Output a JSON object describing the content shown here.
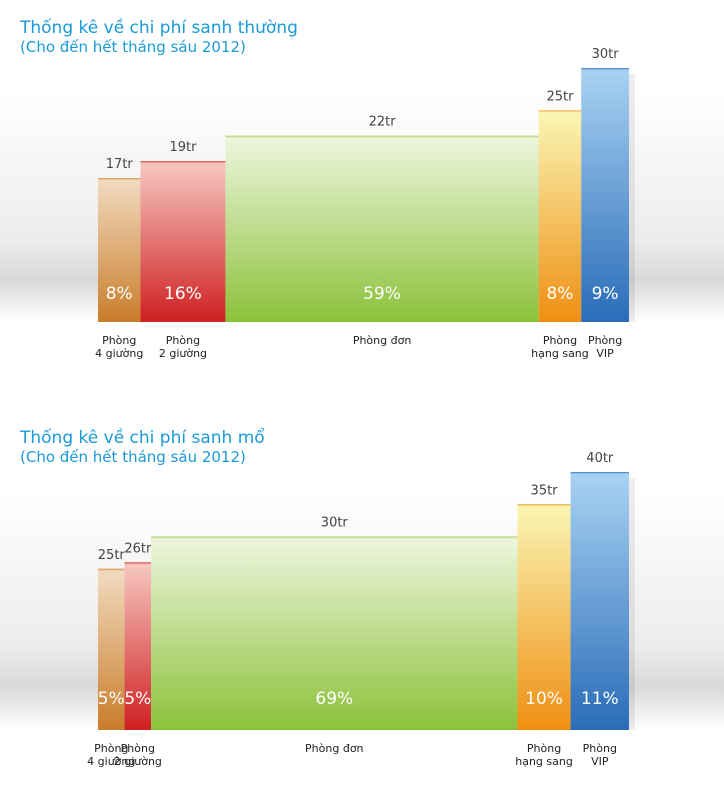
{
  "chart_data": [
    {
      "type": "bar",
      "title": "Thống kê về chi phí sanh thường",
      "subtitle": "(Cho đến hết tháng sáu 2012)",
      "categories": [
        [
          "Phòng",
          "4 giường"
        ],
        [
          "Phòng",
          "2 giường"
        ],
        [
          "Phòng đơn"
        ],
        [
          "Phòng",
          "hạng sang"
        ],
        [
          "Phòng",
          "VIP"
        ]
      ],
      "values": [
        17,
        19,
        22,
        25,
        30
      ],
      "value_labels": [
        "17tr",
        "19tr",
        "22tr",
        "25tr",
        "30tr"
      ],
      "shares": [
        8,
        16,
        59,
        8,
        9
      ],
      "share_labels": [
        "8%",
        "16%",
        "59%",
        "8%",
        "9%"
      ],
      "unit": "tr",
      "ylim": [
        0,
        30
      ],
      "grid": false,
      "colors": [
        {
          "top": "#f2dcc2",
          "bottom": "#c97d2a"
        },
        {
          "top": "#f7c9c2",
          "bottom": "#cf1f22"
        },
        {
          "top": "#eef6df",
          "bottom": "#8cc23a"
        },
        {
          "top": "#faf6b5",
          "bottom": "#ef8f12"
        },
        {
          "top": "#a9d3f3",
          "bottom": "#2a6cb8"
        }
      ]
    },
    {
      "type": "bar",
      "title": "Thống kê về chi phí sanh mổ",
      "subtitle": "(Cho đến hết tháng sáu 2012)",
      "categories": [
        [
          "Phòng",
          "4 giường"
        ],
        [
          "Phòng",
          "2 giường"
        ],
        [
          "Phòng đơn"
        ],
        [
          "Phòng",
          "hạng sang"
        ],
        [
          "Phòng",
          "VIP"
        ]
      ],
      "values": [
        25,
        26,
        30,
        35,
        40
      ],
      "value_labels": [
        "25tr",
        "26tr",
        "30tr",
        "35tr",
        "40tr"
      ],
      "shares": [
        5,
        5,
        69,
        10,
        11
      ],
      "share_labels": [
        "5%",
        "5%",
        "69%",
        "10%",
        "11%"
      ],
      "unit": "tr",
      "ylim": [
        0,
        40
      ],
      "grid": false,
      "colors": [
        {
          "top": "#f2dcc2",
          "bottom": "#c97d2a"
        },
        {
          "top": "#f7c9c2",
          "bottom": "#cf1f22"
        },
        {
          "top": "#eef6df",
          "bottom": "#8cc23a"
        },
        {
          "top": "#faf6b5",
          "bottom": "#ef8f12"
        },
        {
          "top": "#a9d3f3",
          "bottom": "#2a6cb8"
        }
      ]
    }
  ]
}
